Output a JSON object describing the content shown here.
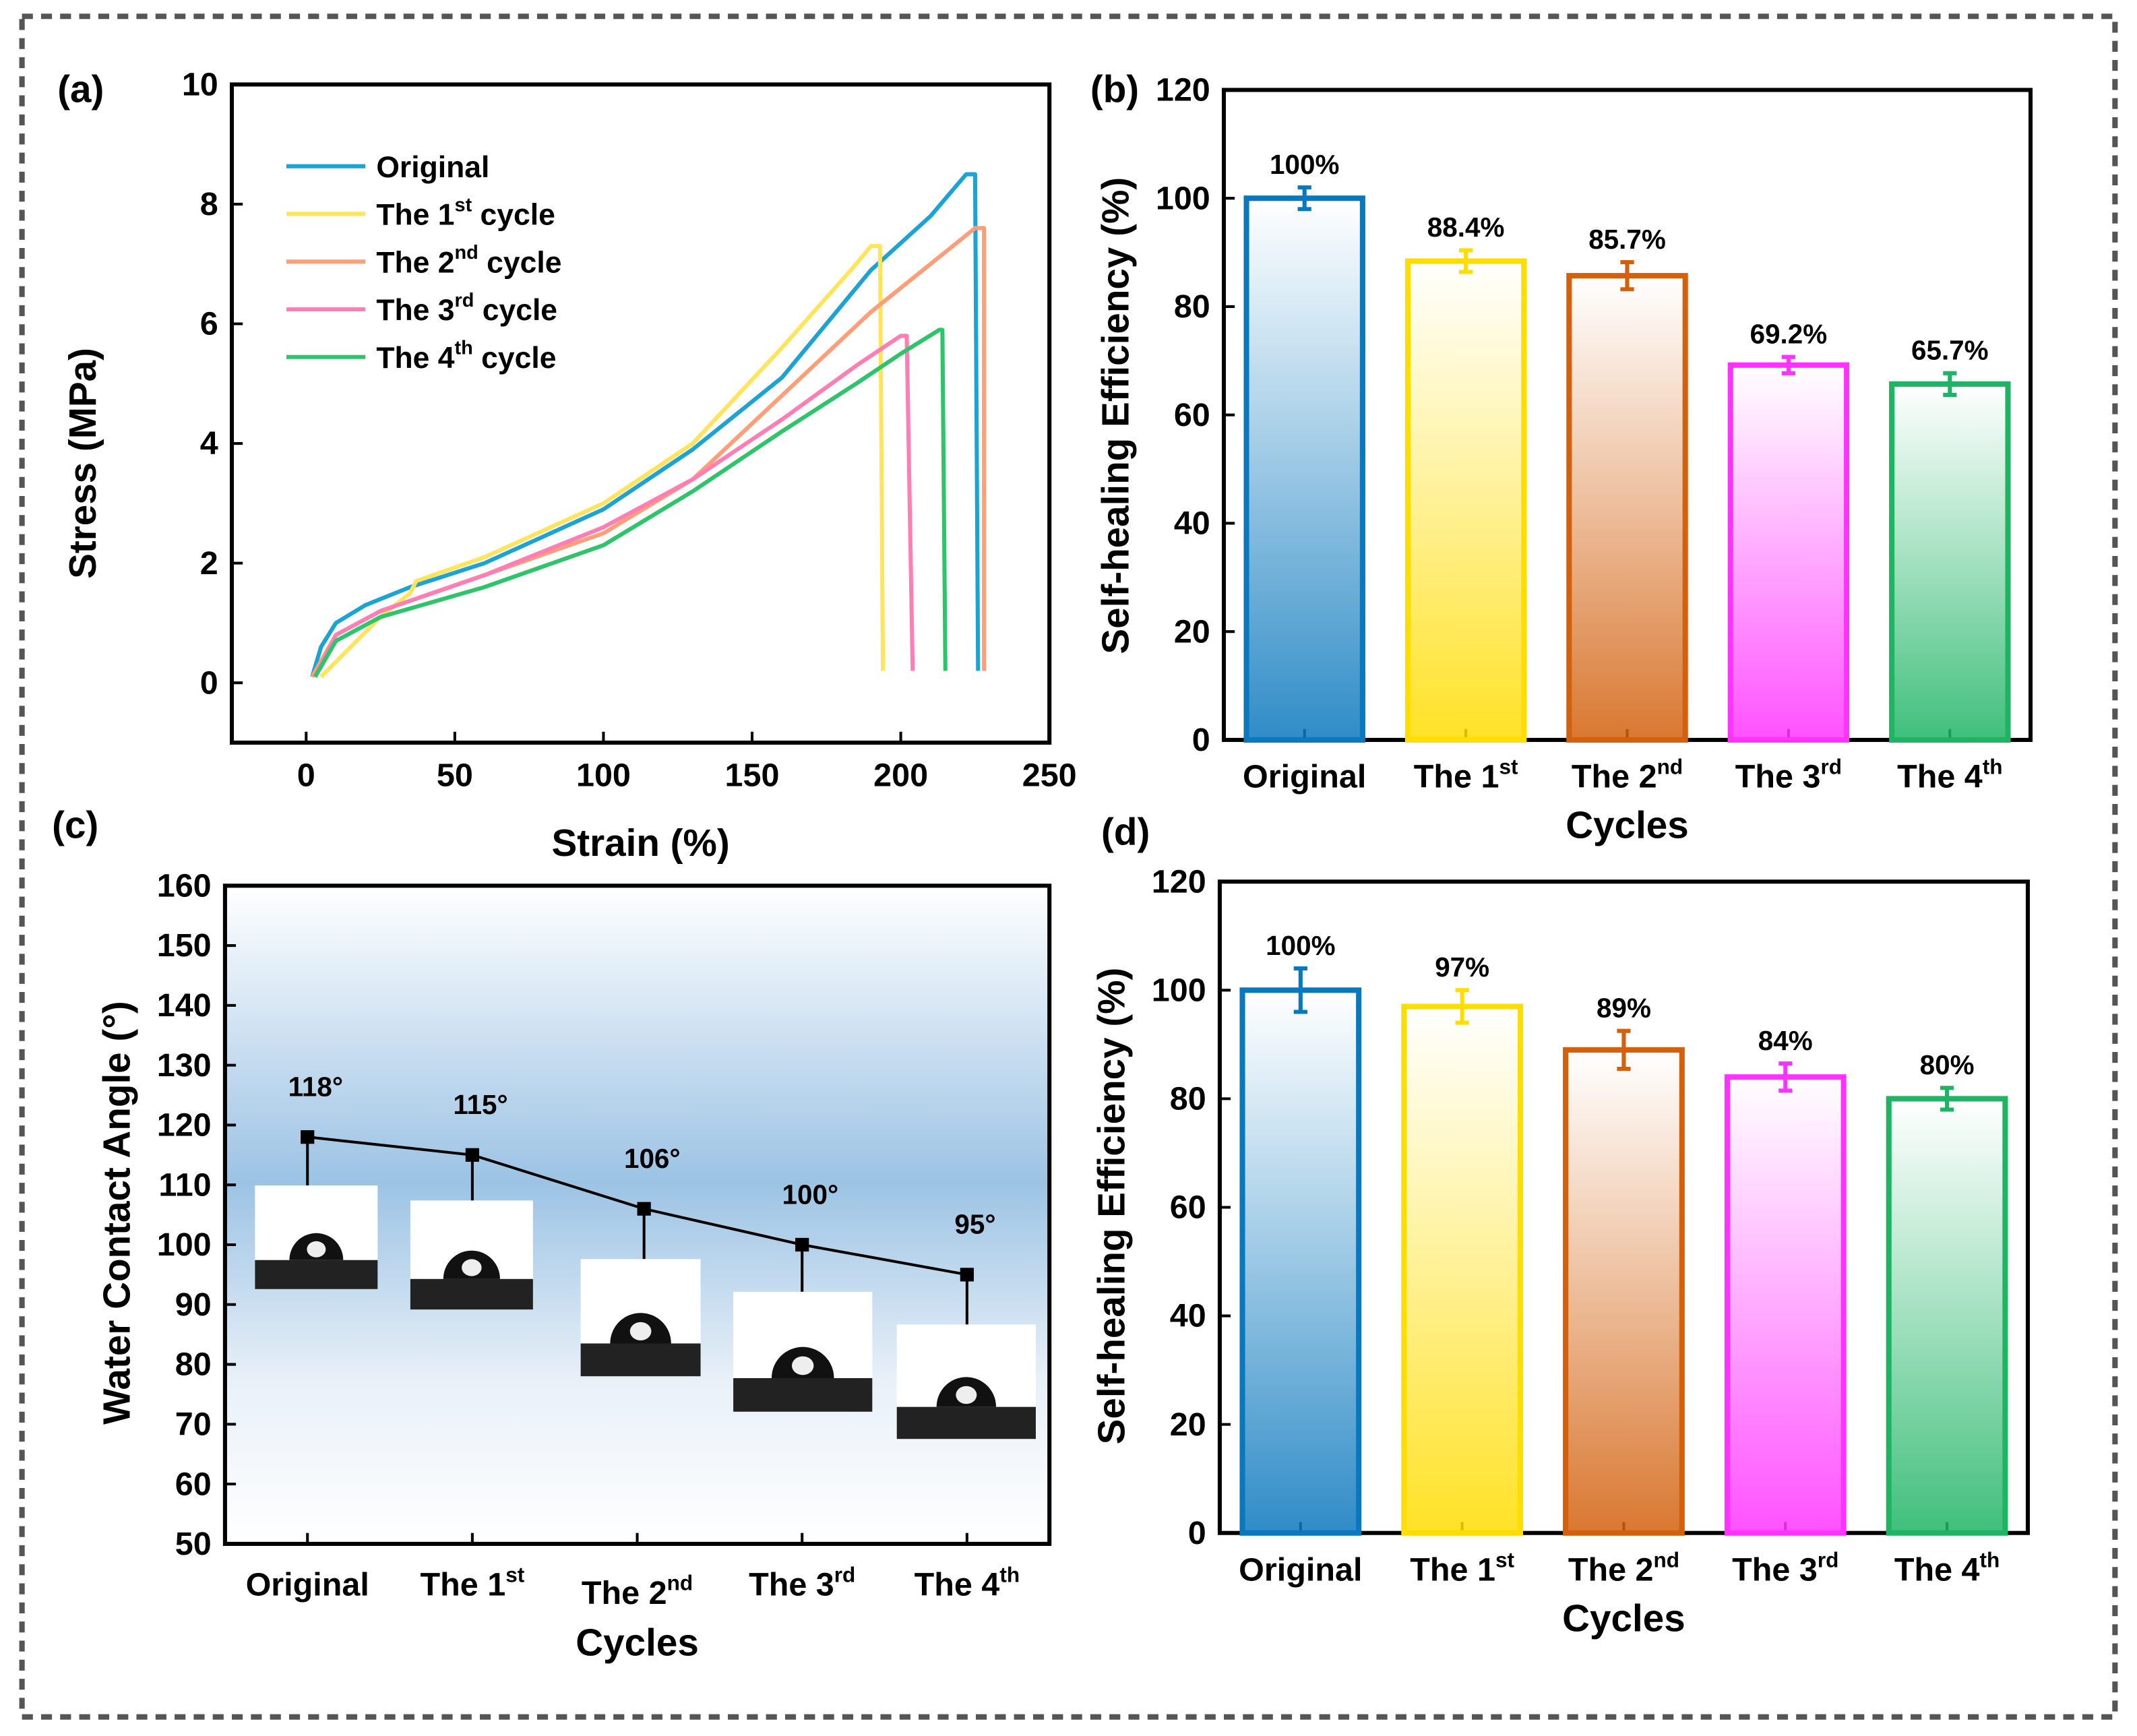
{
  "chart_data": [
    {
      "panel": "(a)",
      "type": "line",
      "xlabel": "Strain (%)",
      "ylabel": "Stress (MPa)",
      "xlim": [
        -25,
        250
      ],
      "ylim": [
        -1,
        10
      ],
      "xticks": [
        0,
        50,
        100,
        150,
        200,
        250
      ],
      "yticks": [
        0,
        2,
        4,
        6,
        8,
        10
      ],
      "legend": "top-left",
      "series": [
        {
          "name": "Original",
          "color": "#1ba3d4",
          "x": [
            2,
            5,
            10,
            20,
            35,
            60,
            100,
            130,
            160,
            190,
            210,
            222,
            225,
            226
          ],
          "y": [
            0.1,
            0.6,
            1.0,
            1.3,
            1.6,
            2.0,
            2.9,
            3.9,
            5.1,
            6.9,
            7.8,
            8.5,
            8.5,
            0.2
          ]
        },
        {
          "name": "The 1st cycle",
          "color": "#ffe45c",
          "x": [
            5,
            15,
            25,
            35,
            37,
            60,
            100,
            130,
            160,
            185,
            190,
            193,
            194
          ],
          "y": [
            0.1,
            0.6,
            1.1,
            1.5,
            1.7,
            2.1,
            3.0,
            4.0,
            5.6,
            7.0,
            7.3,
            7.3,
            0.2
          ]
        },
        {
          "name": "The 2nd cycle",
          "color": "#ff9f7a",
          "x": [
            2,
            10,
            25,
            60,
            100,
            130,
            160,
            190,
            215,
            225,
            228,
            228
          ],
          "y": [
            0.1,
            0.8,
            1.2,
            1.8,
            2.5,
            3.4,
            4.8,
            6.2,
            7.2,
            7.6,
            7.6,
            0.2
          ]
        },
        {
          "name": "The 3rd cycle",
          "color": "#ff7fb5",
          "x": [
            3,
            10,
            25,
            60,
            100,
            130,
            160,
            185,
            200,
            202,
            204
          ],
          "y": [
            0.1,
            0.8,
            1.2,
            1.8,
            2.6,
            3.4,
            4.4,
            5.3,
            5.8,
            5.8,
            0.2
          ]
        },
        {
          "name": "The 4th cycle",
          "color": "#2ec46a",
          "x": [
            3,
            10,
            25,
            60,
            100,
            130,
            160,
            185,
            200,
            213,
            214,
            215
          ],
          "y": [
            0.1,
            0.7,
            1.1,
            1.6,
            2.3,
            3.2,
            4.2,
            5.0,
            5.5,
            5.9,
            5.9,
            0.2
          ]
        }
      ]
    },
    {
      "panel": "(b)",
      "type": "bar",
      "xlabel": "Cycles",
      "ylabel": "Self-healing Efficiency (%)",
      "ylim": [
        0,
        120
      ],
      "yticks": [
        0,
        20,
        40,
        60,
        80,
        100,
        120
      ],
      "categories": [
        "Original",
        "The 1st",
        "The 2nd",
        "The 3rd",
        "The 4th"
      ],
      "values": [
        100,
        88.4,
        85.7,
        69.2,
        65.7
      ],
      "errors": [
        2,
        2,
        2.5,
        1.5,
        2
      ],
      "data_labels": [
        "100%",
        "88.4%",
        "85.7%",
        "69.2%",
        "65.7%"
      ],
      "colors": [
        "#0a78bd",
        "#ffdd00",
        "#d2600c",
        "#ff33ff",
        "#1eb464"
      ]
    },
    {
      "panel": "(c)",
      "type": "line",
      "xlabel": "Cycles",
      "ylabel": "Water Contact Angle (°)",
      "ylim": [
        50,
        160
      ],
      "yticks": [
        50,
        60,
        70,
        80,
        90,
        100,
        110,
        120,
        130,
        140,
        150,
        160
      ],
      "categories": [
        "Original",
        "The 1st",
        "The 2nd",
        "The 3rd",
        "The 4th"
      ],
      "values": [
        118,
        115,
        106,
        100,
        95
      ],
      "data_labels": [
        "118°",
        "115°",
        "106°",
        "100°",
        "95°"
      ]
    },
    {
      "panel": "(d)",
      "type": "bar",
      "xlabel": "Cycles",
      "ylabel": "Self-healing Efficiency (%)",
      "ylim": [
        0,
        120
      ],
      "yticks": [
        0,
        20,
        40,
        60,
        80,
        100,
        120
      ],
      "categories": [
        "Original",
        "The 1st",
        "The 2nd",
        "The 3rd",
        "The 4th"
      ],
      "values": [
        100,
        97,
        89,
        84,
        80
      ],
      "errors": [
        4,
        3,
        3.5,
        2.5,
        2
      ],
      "data_labels": [
        "100%",
        "97%",
        "89%",
        "84%",
        "80%"
      ],
      "colors": [
        "#0a78bd",
        "#ffdd00",
        "#d2600c",
        "#ff33ff",
        "#1eb464"
      ]
    }
  ]
}
